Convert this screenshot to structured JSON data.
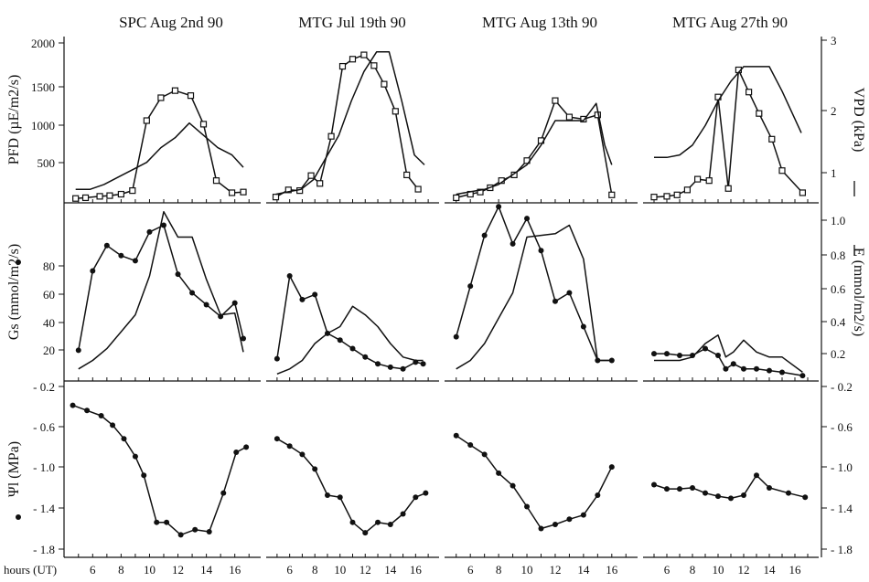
{
  "panel_titles": [
    "SPC Aug 2nd 90",
    "MTG Jul 19th 90",
    "MTG  Aug  13th 90",
    "MTG Aug 27th 90"
  ],
  "xlabel_prefix": "hours (UT)",
  "chart_data": [
    {
      "type": "line",
      "row": "PFD / VPD",
      "ylabel_left": "PFD (µE/m2/s)",
      "ylabel_right": "VPD (kPa)",
      "left_ticks": [
        "500",
        "1000",
        "1500",
        "2000"
      ],
      "right_ticks": [
        "1",
        "2",
        "3"
      ],
      "ylim_left": [
        0,
        2200
      ],
      "ylim_right": [
        0,
        3.2
      ],
      "xlim": [
        4.5,
        17.5
      ],
      "series": [
        [
          {
            "marker": "square",
            "axis": "left",
            "x": [
              4.8,
              5.5,
              6.5,
              7.2,
              8.0,
              8.8,
              9.8,
              10.8,
              11.8,
              12.9,
              13.8,
              14.7,
              15.8,
              16.6
            ],
            "y": [
              10,
              20,
              40,
              50,
              70,
              120,
              1100,
              1420,
              1520,
              1450,
              1050,
              260,
              90,
              100
            ]
          },
          {
            "marker": "none",
            "axis": "right",
            "x": [
              4.8,
              5.8,
              6.8,
              7.8,
              8.8,
              9.8,
              10.8,
              11.8,
              12.8,
              13.8,
              14.8,
              15.8,
              16.6
            ],
            "y": [
              0.2,
              0.2,
              0.3,
              0.45,
              0.6,
              0.75,
              1.05,
              1.25,
              1.55,
              1.3,
              1.05,
              0.9,
              0.65
            ]
          }
        ],
        [
          {
            "marker": "square",
            "axis": "left",
            "x": [
              4.9,
              5.9,
              6.8,
              7.7,
              8.4,
              9.3,
              10.2,
              11.0,
              11.9,
              12.7,
              13.5,
              14.4,
              15.3,
              16.2
            ],
            "y": [
              30,
              130,
              120,
              330,
              220,
              880,
              1860,
              1960,
              2020,
              1870,
              1610,
              1230,
              340,
              140
            ]
          },
          {
            "marker": "none",
            "axis": "right",
            "x": [
              4.9,
              5.9,
              6.9,
              7.9,
              8.9,
              9.9,
              10.9,
              11.9,
              12.9,
              13.9,
              14.9,
              15.9,
              16.7
            ],
            "y": [
              0.1,
              0.15,
              0.2,
              0.4,
              0.85,
              1.3,
              2.0,
              2.6,
              3.0,
              3.0,
              2.0,
              0.9,
              0.7
            ]
          }
        ],
        [
          {
            "marker": "square",
            "axis": "left",
            "x": [
              5.0,
              6.0,
              6.7,
              7.4,
              8.2,
              9.1,
              10.0,
              11.0,
              12.0,
              13.0,
              14.0,
              15.0,
              16.0
            ],
            "y": [
              20,
              70,
              100,
              160,
              260,
              340,
              540,
              820,
              1380,
              1150,
              1120,
              1180,
              60
            ]
          },
          {
            "marker": "none",
            "axis": "right",
            "x": [
              5.0,
              6.0,
              7.0,
              8.0,
              9.0,
              10.0,
              11.0,
              12.0,
              13.0,
              14.0,
              14.9,
              15.5,
              16.0
            ],
            "y": [
              0.1,
              0.15,
              0.2,
              0.3,
              0.5,
              0.7,
              1.1,
              1.6,
              1.6,
              1.6,
              1.95,
              1.1,
              0.7
            ]
          }
        ],
        [
          {
            "marker": "square",
            "axis": "left",
            "x": [
              5.0,
              6.0,
              6.8,
              7.6,
              8.4,
              9.3,
              10.0,
              10.8,
              11.6,
              12.4,
              13.2,
              14.2,
              15.0,
              16.6
            ],
            "y": [
              30,
              40,
              60,
              130,
              280,
              260,
              1430,
              150,
              1810,
              1500,
              1200,
              840,
              400,
              90
            ]
          },
          {
            "marker": "none",
            "axis": "right",
            "x": [
              5.0,
              6.0,
              7.0,
              8.0,
              9.0,
              10.0,
              11.0,
              12.0,
              13.0,
              14.0,
              15.0,
              16.5
            ],
            "y": [
              0.85,
              0.85,
              0.9,
              1.1,
              1.5,
              2.0,
              2.4,
              2.7,
              2.7,
              2.7,
              2.2,
              1.35
            ]
          }
        ]
      ]
    },
    {
      "type": "line",
      "row": "Gs / E",
      "ylabel_left": "Gs (mmol/m2/s)",
      "ylabel_right": "E (mmol/m2/s)",
      "left_ticks": [
        "20",
        "40",
        "60",
        "80"
      ],
      "right_ticks": [
        "0.2",
        "0.4",
        "0.6",
        "0.8",
        "1.0"
      ],
      "ylim_left": [
        0,
        100
      ],
      "ylim_right": [
        0,
        1.0
      ],
      "xlim": [
        4.5,
        17.5
      ],
      "series": [
        [
          {
            "marker": "dot",
            "axis": "left",
            "x": [
              5.0,
              6.0,
              7.0,
              8.0,
              9.0,
              10.0,
              11.0,
              12.0,
              13.0,
              14.0,
              15.0,
              16.0,
              16.6
            ],
            "y": [
              16,
              63,
              78,
              72,
              69,
              86,
              90,
              61,
              50,
              43,
              36,
              44,
              23
            ]
          },
          {
            "marker": "none",
            "axis": "right",
            "x": [
              5.0,
              6.0,
              7.0,
              8.0,
              9.0,
              10.0,
              11.0,
              12.0,
              13.0,
              14.0,
              15.0,
              16.0,
              16.6
            ],
            "y": [
              0.05,
              0.1,
              0.17,
              0.27,
              0.37,
              0.6,
              0.98,
              0.83,
              0.83,
              0.58,
              0.37,
              0.38,
              0.15
            ]
          }
        ],
        [
          {
            "marker": "dot",
            "axis": "left",
            "x": [
              5.0,
              6.0,
              7.0,
              8.0,
              9.0,
              10.0,
              11.0,
              12.0,
              13.0,
              14.0,
              15.0,
              16.0,
              16.6
            ],
            "y": [
              11,
              60,
              46,
              49,
              26,
              22,
              17,
              12,
              8,
              6,
              5,
              9,
              8
            ]
          },
          {
            "marker": "none",
            "axis": "right",
            "x": [
              5.0,
              6.0,
              7.0,
              8.0,
              9.0,
              10.0,
              11.0,
              12.0,
              13.0,
              14.0,
              15.0,
              16.0,
              16.6
            ],
            "y": [
              0.02,
              0.05,
              0.1,
              0.2,
              0.26,
              0.3,
              0.42,
              0.37,
              0.3,
              0.2,
              0.12,
              0.1,
              0.1
            ]
          }
        ],
        [
          {
            "marker": "dot",
            "axis": "left",
            "x": [
              5.0,
              6.0,
              7.0,
              8.0,
              9.0,
              10.0,
              11.0,
              12.0,
              13.0,
              14.0,
              15.0,
              16.0
            ],
            "y": [
              24,
              54,
              84,
              101,
              79,
              94,
              75,
              45,
              50,
              30,
              10,
              10
            ]
          },
          {
            "marker": "none",
            "axis": "right",
            "x": [
              5.0,
              6.0,
              7.0,
              8.0,
              9.0,
              10.0,
              11.0,
              12.0,
              13.0,
              14.0,
              15.0,
              16.0
            ],
            "y": [
              0.05,
              0.1,
              0.2,
              0.35,
              0.5,
              0.83,
              0.84,
              0.85,
              0.9,
              0.7,
              0.1,
              0.1
            ]
          }
        ],
        [
          {
            "marker": "dot",
            "axis": "left",
            "x": [
              5.0,
              6.0,
              7.0,
              8.0,
              9.0,
              10.0,
              10.6,
              11.2,
              12.0,
              13.0,
              14.0,
              15.0,
              16.6
            ],
            "y": [
              14,
              14,
              13,
              13,
              17,
              13,
              5,
              8,
              5,
              5,
              4,
              3,
              1
            ]
          },
          {
            "marker": "none",
            "axis": "right",
            "x": [
              5.0,
              6.0,
              7.0,
              8.0,
              9.0,
              10.0,
              10.6,
              11.2,
              12.0,
              13.0,
              14.0,
              15.0,
              16.6
            ],
            "y": [
              0.1,
              0.1,
              0.1,
              0.12,
              0.2,
              0.25,
              0.12,
              0.15,
              0.22,
              0.15,
              0.12,
              0.12,
              0.03
            ]
          }
        ]
      ]
    },
    {
      "type": "line",
      "row": "Psi l",
      "ylabel_left": "Ψl (MPa)",
      "left_ticks": [
        "- 0.2",
        "- 0.6",
        "- 1.0",
        "- 1.4",
        "- 1.8"
      ],
      "right_ticks": [
        "- 0.2",
        "- 0.6",
        "- 1.0",
        "- 1.4",
        "- 1.8"
      ],
      "ylim_left": [
        -1.8,
        -0.2
      ],
      "xlim": [
        4.5,
        17.5
      ],
      "series": [
        [
          {
            "marker": "dot",
            "axis": "left",
            "x": [
              4.6,
              5.6,
              6.6,
              7.4,
              8.2,
              9.0,
              9.6,
              10.5,
              11.2,
              12.2,
              13.2,
              14.2,
              15.2,
              16.1,
              16.8
            ],
            "y": [
              -0.38,
              -0.43,
              -0.48,
              -0.57,
              -0.7,
              -0.87,
              -1.05,
              -1.5,
              -1.5,
              -1.62,
              -1.57,
              -1.59,
              -1.22,
              -0.83,
              -0.78
            ]
          }
        ],
        [
          {
            "marker": "dot",
            "axis": "left",
            "x": [
              5.0,
              6.0,
              7.0,
              8.0,
              9.0,
              10.0,
              11.0,
              12.0,
              13.0,
              14.0,
              15.0,
              16.0,
              16.8
            ],
            "y": [
              -0.7,
              -0.77,
              -0.85,
              -0.99,
              -1.24,
              -1.26,
              -1.5,
              -1.6,
              -1.5,
              -1.52,
              -1.42,
              -1.26,
              -1.22
            ]
          }
        ],
        [
          {
            "marker": "dot",
            "axis": "left",
            "x": [
              5.0,
              6.0,
              7.0,
              8.0,
              9.0,
              10.0,
              11.0,
              12.0,
              13.0,
              14.0,
              15.0,
              16.0
            ],
            "y": [
              -0.67,
              -0.76,
              -0.85,
              -1.03,
              -1.15,
              -1.35,
              -1.56,
              -1.52,
              -1.47,
              -1.43,
              -1.24,
              -0.97
            ]
          }
        ],
        [
          {
            "marker": "dot",
            "axis": "left",
            "x": [
              5.0,
              6.0,
              7.0,
              8.0,
              9.0,
              10.0,
              11.0,
              12.0,
              13.0,
              14.0,
              15.5,
              16.8
            ],
            "y": [
              -1.14,
              -1.18,
              -1.18,
              -1.17,
              -1.22,
              -1.25,
              -1.27,
              -1.24,
              -1.05,
              -1.17,
              -1.22,
              -1.26
            ]
          }
        ]
      ]
    }
  ],
  "x_ticks": [
    [
      "6",
      "8",
      "10",
      "12",
      "14",
      "16"
    ],
    [
      "6",
      "8",
      "10",
      "12",
      "14",
      "16"
    ],
    [
      "6",
      "8",
      "10",
      "12",
      "14",
      "16"
    ],
    [
      "6",
      "8",
      "10",
      "12",
      "14",
      "16"
    ]
  ]
}
